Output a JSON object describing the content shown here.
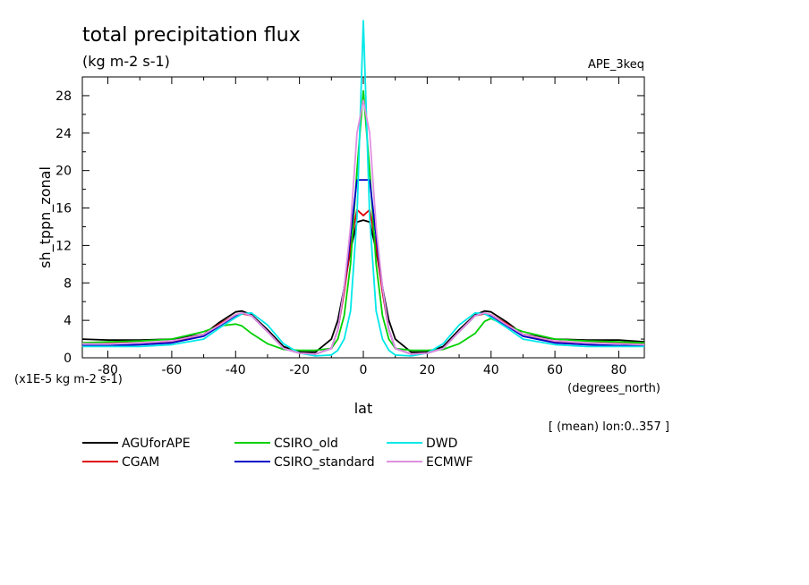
{
  "title": "total precipitation flux",
  "units": "(kg m-2 s-1)",
  "dataset": "APE_3keq",
  "ylabel": "sh_tppn_zonal",
  "y_scale_note": "(x1E-5 kg m-2 s-1)",
  "xlabel": "lat",
  "x_unit": "(degrees_north)",
  "note": "[ (mean) lon:0..357 ]",
  "colors": {
    "AGUforAPE": "#000000",
    "CGAM": "#e00000",
    "CSIRO_old": "#00d000",
    "CSIRO_standard": "#0000c8",
    "DWD": "#00e8e8",
    "ECMWF": "#e090e0"
  },
  "chart_data": {
    "type": "line",
    "title": "total precipitation flux",
    "xlabel": "lat",
    "ylabel": "sh_tppn_zonal",
    "xlim": [
      -88,
      88
    ],
    "ylim": [
      0,
      30
    ],
    "xticks": [
      -80,
      -60,
      -40,
      -20,
      0,
      20,
      40,
      60,
      80
    ],
    "yticks": [
      0,
      4,
      8,
      12,
      16,
      20,
      24,
      28
    ],
    "grid": false,
    "legend_position": "bottom",
    "x": [
      -88,
      -80,
      -70,
      -60,
      -50,
      -45,
      -40,
      -38,
      -35,
      -30,
      -25,
      -20,
      -15,
      -10,
      -8,
      -6,
      -4,
      -2,
      0,
      2,
      4,
      6,
      8,
      10,
      15,
      20,
      25,
      30,
      35,
      38,
      40,
      45,
      50,
      60,
      70,
      80,
      88
    ],
    "series": [
      {
        "name": "AGUforAPE",
        "values": [
          2.0,
          1.9,
          1.9,
          2.0,
          2.5,
          3.8,
          4.9,
          5.0,
          4.6,
          3.0,
          1.2,
          0.6,
          0.6,
          2.0,
          4.0,
          7.5,
          11.5,
          14.5,
          14.7,
          14.5,
          11.5,
          7.5,
          4.0,
          2.0,
          0.6,
          0.6,
          1.2,
          3.0,
          4.6,
          5.0,
          4.9,
          3.8,
          2.5,
          2.0,
          1.9,
          1.9,
          1.7
        ]
      },
      {
        "name": "CGAM",
        "values": [
          1.6,
          1.6,
          1.6,
          1.7,
          2.5,
          3.6,
          4.6,
          4.7,
          4.5,
          2.8,
          1.0,
          0.5,
          0.4,
          1.0,
          3.0,
          7.0,
          12.0,
          15.8,
          15.2,
          15.8,
          12.0,
          7.0,
          3.0,
          1.0,
          0.4,
          0.5,
          1.0,
          2.8,
          4.5,
          4.7,
          4.6,
          3.6,
          2.5,
          1.7,
          1.6,
          1.6,
          1.5
        ]
      },
      {
        "name": "CSIRO_old",
        "values": [
          1.6,
          1.7,
          1.8,
          2.0,
          2.8,
          3.4,
          3.6,
          3.4,
          2.6,
          1.5,
          0.9,
          0.8,
          0.8,
          1.0,
          2.0,
          4.5,
          10.0,
          20.0,
          28.5,
          20.0,
          10.0,
          4.5,
          2.0,
          1.0,
          0.8,
          0.8,
          0.9,
          1.5,
          2.6,
          3.9,
          4.2,
          3.4,
          2.8,
          2.0,
          1.8,
          1.7,
          1.6
        ]
      },
      {
        "name": "CSIRO_standard",
        "values": [
          1.3,
          1.3,
          1.4,
          1.6,
          2.3,
          3.4,
          4.5,
          4.8,
          4.5,
          2.8,
          1.0,
          0.5,
          0.4,
          1.0,
          3.0,
          7.5,
          13.0,
          19.0,
          19.0,
          19.0,
          13.0,
          7.5,
          3.0,
          1.0,
          0.4,
          0.5,
          1.0,
          2.8,
          4.5,
          4.8,
          4.5,
          3.4,
          2.3,
          1.6,
          1.4,
          1.3,
          1.3
        ]
      },
      {
        "name": "DWD",
        "values": [
          1.2,
          1.2,
          1.2,
          1.4,
          2.0,
          3.2,
          4.3,
          4.7,
          4.8,
          3.5,
          1.5,
          0.5,
          0.2,
          0.3,
          0.8,
          2.0,
          5.0,
          15.0,
          36.0,
          15.0,
          5.0,
          2.0,
          0.8,
          0.3,
          0.2,
          0.5,
          1.5,
          3.5,
          4.8,
          4.7,
          4.3,
          3.2,
          2.0,
          1.4,
          1.2,
          1.2,
          1.2
        ]
      },
      {
        "name": "ECMWF",
        "values": [
          1.5,
          1.5,
          1.6,
          1.8,
          2.5,
          3.5,
          4.6,
          4.8,
          4.5,
          2.8,
          1.0,
          0.5,
          0.4,
          1.0,
          3.0,
          7.5,
          14.0,
          24.0,
          27.5,
          24.0,
          14.0,
          7.5,
          3.0,
          1.0,
          0.4,
          0.5,
          1.0,
          2.8,
          4.5,
          4.8,
          4.6,
          3.5,
          2.5,
          1.8,
          1.6,
          1.5,
          1.4
        ]
      }
    ]
  }
}
